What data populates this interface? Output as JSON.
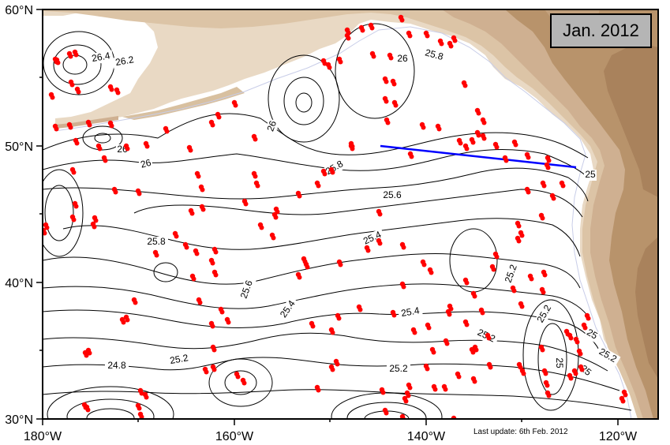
{
  "title": "Jan. 2012",
  "update_note": "Last update: 6th Feb. 2012",
  "colors": {
    "land_light": "#e9d9c4",
    "land_mid": "#cfb091",
    "land_dark": "#a9825c",
    "float": "#ff0000",
    "section_line": "#0000ff",
    "contour": "#000000"
  },
  "axes": {
    "lat_labels": [
      "60°N",
      "50°N",
      "40°N",
      "30°N"
    ],
    "lon_labels": [
      "180°W",
      "160°W",
      "140°W",
      "120°W"
    ]
  },
  "contour_labels": [
    {
      "text": "26.4"
    },
    {
      "text": "26.2"
    },
    {
      "text": "26"
    },
    {
      "text": "26"
    },
    {
      "text": "26"
    },
    {
      "text": "26"
    },
    {
      "text": "25.8"
    },
    {
      "text": "25.8"
    },
    {
      "text": "25.8"
    },
    {
      "text": "25.6"
    },
    {
      "text": "25.6"
    },
    {
      "text": "25.4"
    },
    {
      "text": "25.4"
    },
    {
      "text": "25.4"
    },
    {
      "text": "25.2"
    },
    {
      "text": "25.2"
    },
    {
      "text": "25.2"
    },
    {
      "text": "25.2"
    },
    {
      "text": "25.2"
    },
    {
      "text": "25"
    },
    {
      "text": "25"
    },
    {
      "text": "24.8"
    },
    {
      "text": "25.2"
    },
    {
      "text": "25"
    },
    {
      "text": "25"
    }
  ]
}
